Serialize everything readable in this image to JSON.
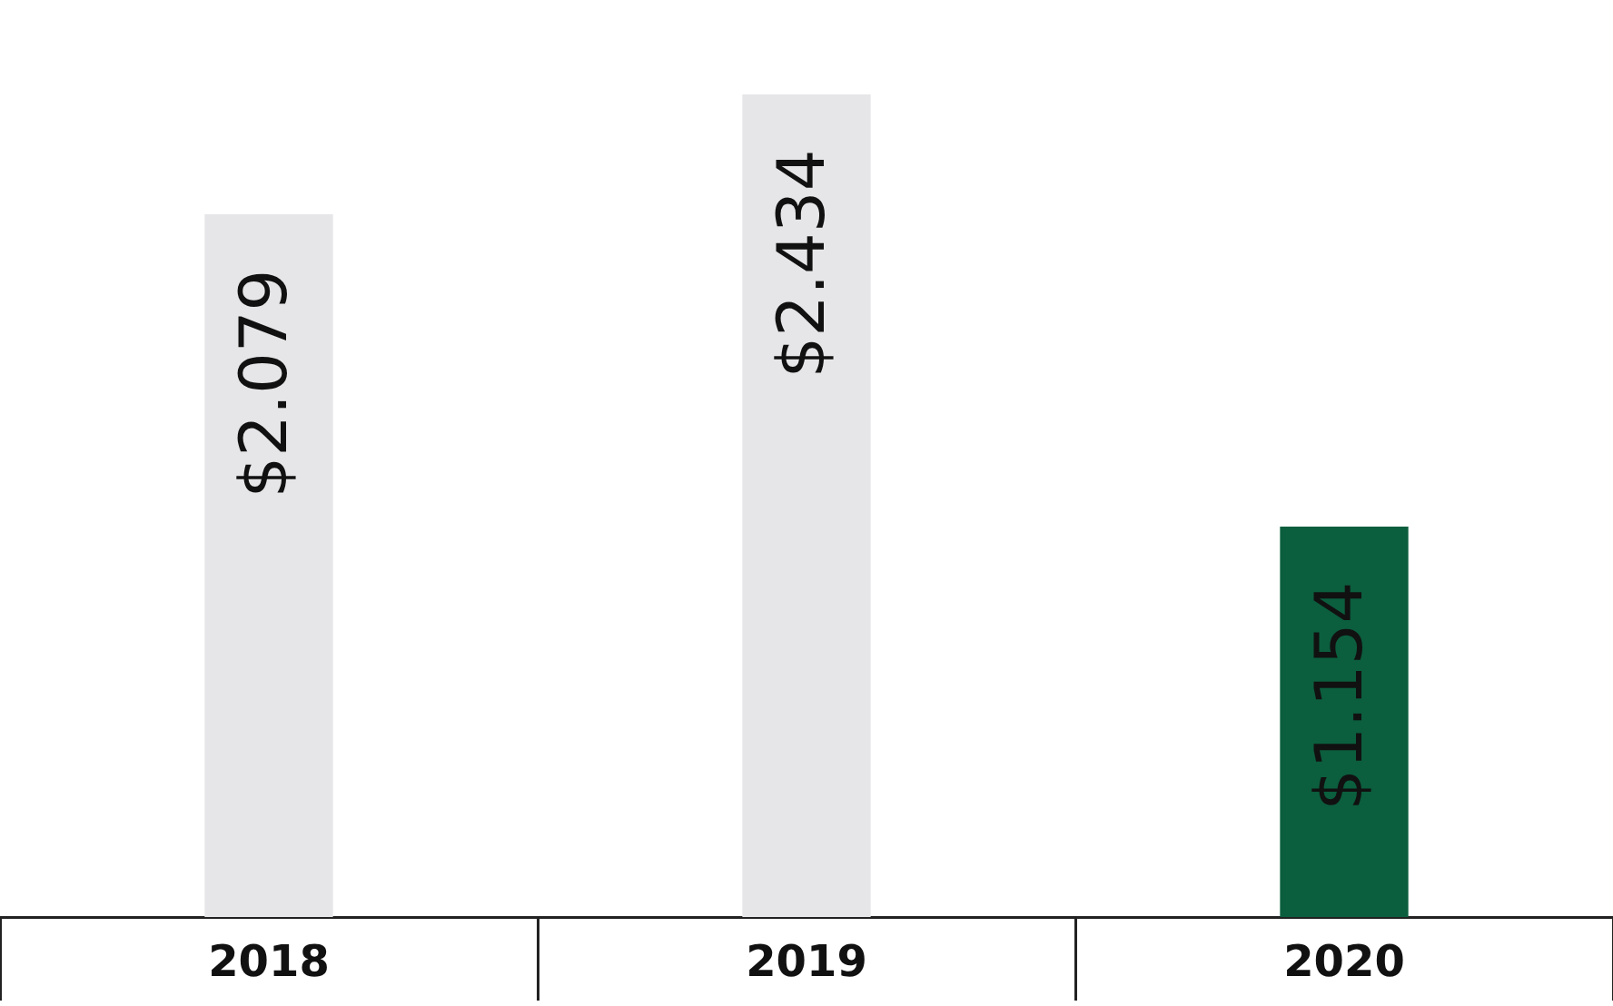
{
  "chart_data": {
    "type": "bar",
    "categories": [
      "2018",
      "2019",
      "2020"
    ],
    "values": [
      2.079,
      2.434,
      1.154
    ],
    "value_labels": [
      "$2.079",
      "$2.434",
      "$1.154"
    ],
    "colors": [
      "#e6e6e8",
      "#e6e6e8",
      "#0b5e3e"
    ],
    "grid": false,
    "legend": false
  }
}
